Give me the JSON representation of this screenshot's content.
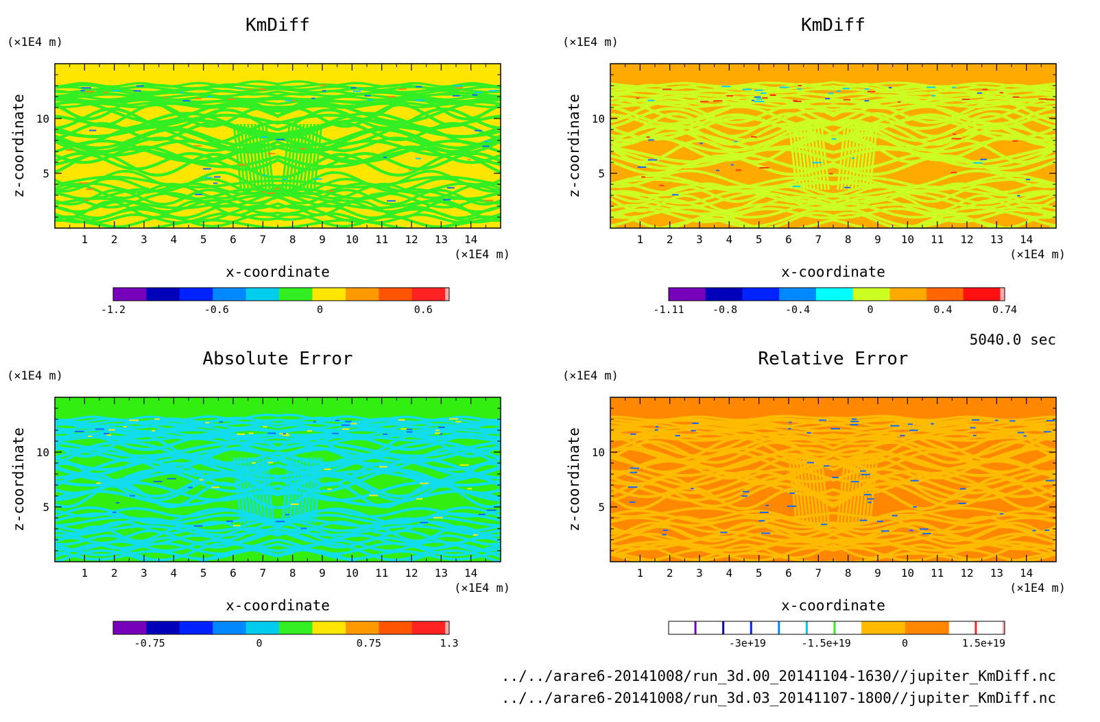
{
  "time_label": "5040.0 sec",
  "file_paths": [
    "../../arare6-20141008/run_3d.00_20141104-1630//jupiter_KmDiff.nc",
    "../../arare6-20141008/run_3d.03_20141107-1800//jupiter_KmDiff.nc"
  ],
  "chart_data": [
    {
      "type": "heatmap",
      "title": "KmDiff",
      "xlabel": "x-coordinate",
      "ylabel": "z-coordinate",
      "x_unit": "(×1E4 m)",
      "y_unit": "(×1E4 m)",
      "x_ticks": [
        "1",
        "2",
        "3",
        "4",
        "5",
        "6",
        "7",
        "8",
        "9",
        "10",
        "11",
        "12",
        "13",
        "14"
      ],
      "y_ticks": [
        "5",
        "10"
      ],
      "xlim": [
        0,
        15
      ],
      "ylim": [
        0,
        15
      ],
      "background_color": "#ffe600",
      "pattern_colors": [
        "#33ee22",
        "#00ccff",
        "#ff8800",
        "#1166ff"
      ],
      "colorbar": {
        "colors": [
          "#7700bb",
          "#0000bb",
          "#0022ff",
          "#0088ff",
          "#00ccee",
          "#33ee22",
          "#ffe600",
          "#ff9900",
          "#ff5500",
          "#ff2222",
          "#ffaaaa"
        ],
        "tick_labels": [
          "-1.2",
          "-0.6",
          "0",
          "0.6"
        ],
        "tick_values": [
          -1.2,
          -0.6,
          0,
          0.6
        ],
        "range": [
          -1.2,
          0.75
        ]
      }
    },
    {
      "type": "heatmap",
      "title": "KmDiff",
      "xlabel": "x-coordinate",
      "ylabel": "z-coordinate",
      "x_unit": "(×1E4 m)",
      "y_unit": "(×1E4 m)",
      "x_ticks": [
        "1",
        "2",
        "3",
        "4",
        "5",
        "6",
        "7",
        "8",
        "9",
        "10",
        "11",
        "12",
        "13",
        "14"
      ],
      "y_ticks": [
        "5",
        "10"
      ],
      "xlim": [
        0,
        15
      ],
      "ylim": [
        0,
        15
      ],
      "background_color": "#ffaa00",
      "pattern_colors": [
        "#ccff22",
        "#00ccff",
        "#ff3300",
        "#1166ff"
      ],
      "colorbar": {
        "colors": [
          "#7700bb",
          "#0000bb",
          "#0022ff",
          "#0088ff",
          "#00ffff",
          "#ccff22",
          "#ffaa00",
          "#ff6600",
          "#ff1111",
          "#ffaaaa"
        ],
        "tick_labels": [
          "-1.11",
          "-0.8",
          "-0.4",
          "0",
          "0.4",
          "0.74"
        ],
        "tick_values": [
          -1.11,
          -0.8,
          -0.4,
          0,
          0.4,
          0.74
        ],
        "range": [
          -1.11,
          0.74
        ]
      }
    },
    {
      "type": "heatmap",
      "title": "Absolute Error",
      "xlabel": "x-coordinate",
      "ylabel": "z-coordinate",
      "x_unit": "(×1E4 m)",
      "y_unit": "(×1E4 m)",
      "x_ticks": [
        "1",
        "2",
        "3",
        "4",
        "5",
        "6",
        "7",
        "8",
        "9",
        "10",
        "11",
        "12",
        "13",
        "14"
      ],
      "y_ticks": [
        "5",
        "10"
      ],
      "xlim": [
        0,
        15
      ],
      "ylim": [
        0,
        15
      ],
      "background_color": "#33ee11",
      "pattern_colors": [
        "#11ddee",
        "#1166ff",
        "#ffee00"
      ],
      "colorbar": {
        "colors": [
          "#7700bb",
          "#0000bb",
          "#0022ff",
          "#0088ff",
          "#00ccee",
          "#33ee22",
          "#ffe600",
          "#ff9900",
          "#ff5500",
          "#ff2222",
          "#ffaaaa"
        ],
        "tick_labels": [
          "-0.75",
          "0",
          "0.75",
          "1.3"
        ],
        "tick_values": [
          -0.75,
          0,
          0.75,
          1.3
        ],
        "range": [
          -1.0,
          1.3
        ]
      }
    },
    {
      "type": "heatmap",
      "title": "Relative Error",
      "xlabel": "x-coordinate",
      "ylabel": "z-coordinate",
      "x_unit": "(×1E4 m)",
      "y_unit": "(×1E4 m)",
      "x_ticks": [
        "1",
        "2",
        "3",
        "4",
        "5",
        "6",
        "7",
        "8",
        "9",
        "10",
        "11",
        "12",
        "13",
        "14"
      ],
      "y_ticks": [
        "5",
        "10"
      ],
      "xlim": [
        0,
        15
      ],
      "ylim": [
        0,
        15
      ],
      "background_color": "#ff8800",
      "pattern_colors": [
        "#ffbb00",
        "#1166ff"
      ],
      "colorbar": {
        "style": "thin-lines",
        "colors": [
          "#ffffff",
          "#7700bb",
          "#ffffff",
          "#0000bb",
          "#ffffff",
          "#0022ff",
          "#ffffff",
          "#0088ff",
          "#ffffff",
          "#00ccee",
          "#ffffff",
          "#33ee22",
          "#ffffff",
          "#ffbb00",
          "#ff8800",
          "#ffffff",
          "#ff2222",
          "#ffffff",
          "#ffaaaa"
        ],
        "tick_labels": [
          "-3e+19",
          "-1.5e+19",
          "0",
          "1.5e+19"
        ],
        "tick_values": [
          -3e+19,
          -1.5e+19,
          0,
          1.5e+19
        ],
        "range": [
          -4.5e+19,
          1.9e+19
        ]
      }
    }
  ]
}
